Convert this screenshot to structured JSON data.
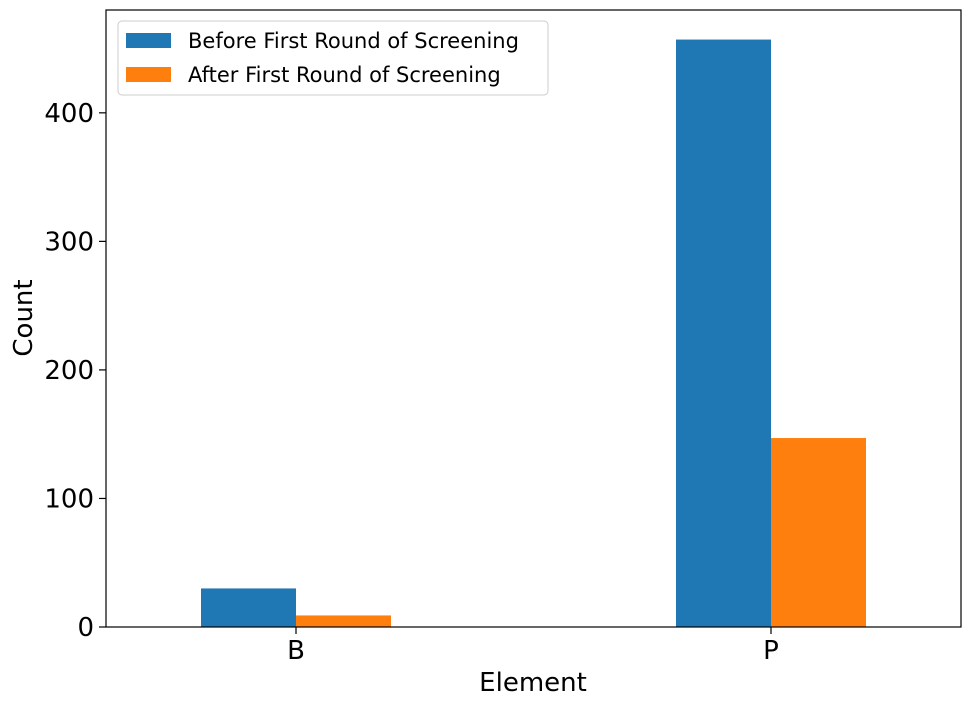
{
  "chart_data": {
    "type": "bar",
    "xlabel": "Element",
    "ylabel": "Count",
    "categories": [
      "B",
      "P"
    ],
    "series": [
      {
        "name": "Before First Round of Screening",
        "color": "#1f77b4",
        "values": [
          30,
          457
        ]
      },
      {
        "name": "After First Round of Screening",
        "color": "#ff7f0e",
        "values": [
          9,
          147
        ]
      }
    ],
    "ylim": [
      0,
      480
    ],
    "yticks": [
      0,
      100,
      200,
      300,
      400
    ],
    "grid": false,
    "legend_position": "top-left"
  }
}
